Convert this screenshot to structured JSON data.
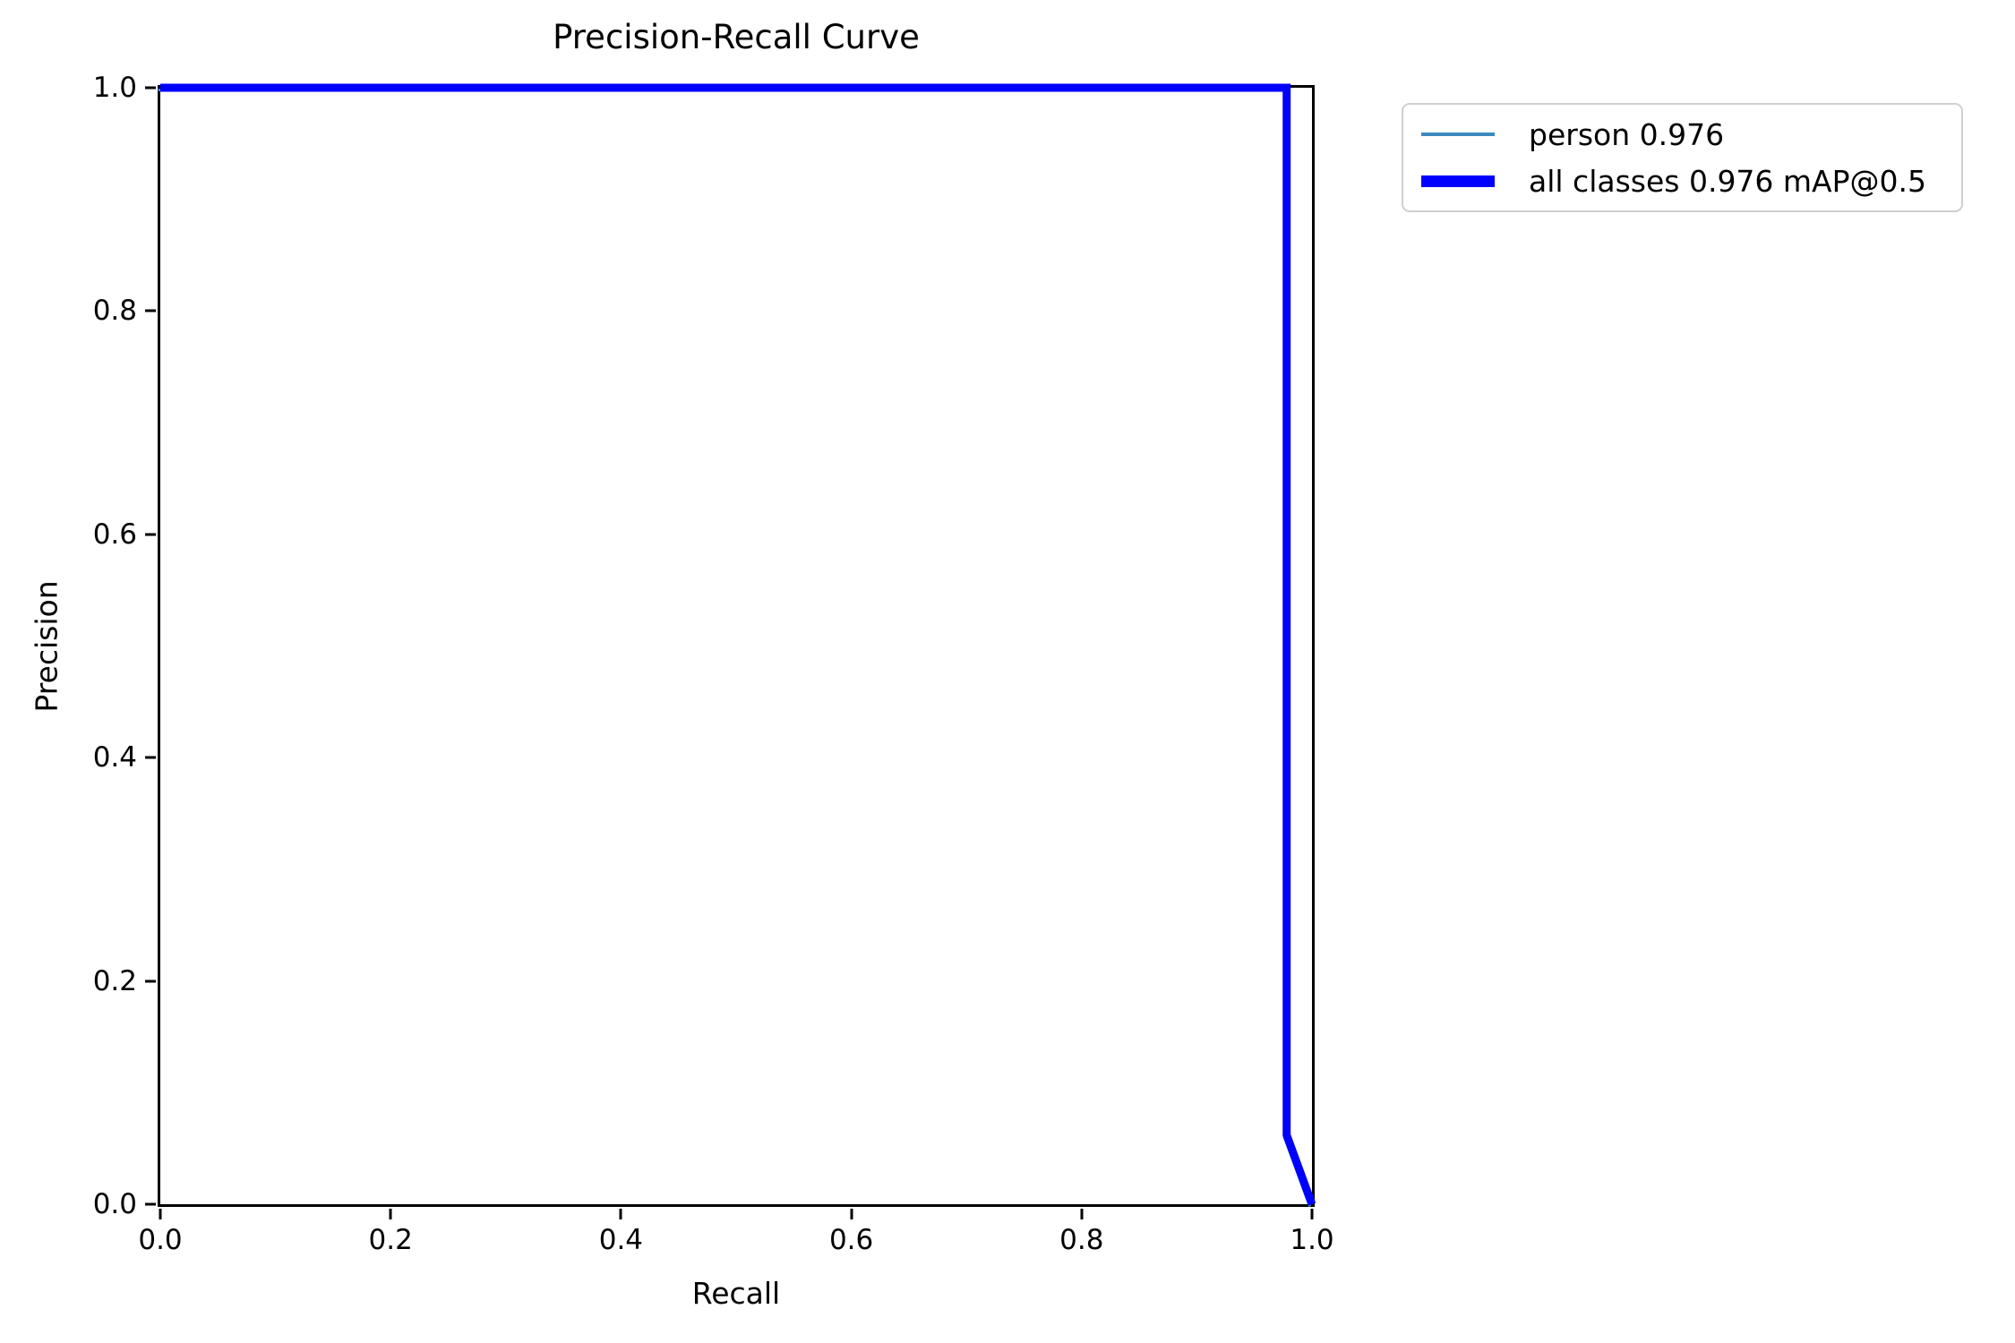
{
  "title": "Precision-Recall Curve",
  "axes": {
    "xlabel": "Recall",
    "ylabel": "Precision",
    "x_ticks": [
      "0.0",
      "0.2",
      "0.4",
      "0.6",
      "0.8",
      "1.0"
    ],
    "y_ticks": [
      "1.0",
      "0.8",
      "0.6",
      "0.4",
      "0.2",
      "0.0"
    ],
    "xlim": [
      0,
      1
    ],
    "ylim": [
      0,
      1
    ]
  },
  "legend": {
    "entries": [
      {
        "label": "person 0.976",
        "color": "#3c8abe",
        "thickness": "thin"
      },
      {
        "label": "all classes 0.976 mAP@0.5",
        "color": "#0000ff",
        "thickness": "thick"
      }
    ]
  },
  "chart_data": {
    "type": "line",
    "title": "Precision-Recall Curve",
    "xlabel": "Recall",
    "ylabel": "Precision",
    "xlim": [
      0,
      1
    ],
    "ylim": [
      0,
      1
    ],
    "grid": false,
    "legend_position": "outside-upper-right",
    "series": [
      {
        "name": "person 0.976",
        "ap": 0.976,
        "color": "#3c8abe",
        "linewidth": "thin",
        "points": [
          [
            0.0,
            1.0
          ],
          [
            0.978,
            1.0
          ],
          [
            0.978,
            0.062
          ],
          [
            1.0,
            0.0
          ]
        ]
      },
      {
        "name": "all classes 0.976 mAP@0.5",
        "map_at_0.5": 0.976,
        "color": "#0000ff",
        "linewidth": "thick",
        "points": [
          [
            0.0,
            1.0
          ],
          [
            0.978,
            1.0
          ],
          [
            0.978,
            0.062
          ],
          [
            1.0,
            0.0
          ]
        ]
      }
    ]
  }
}
